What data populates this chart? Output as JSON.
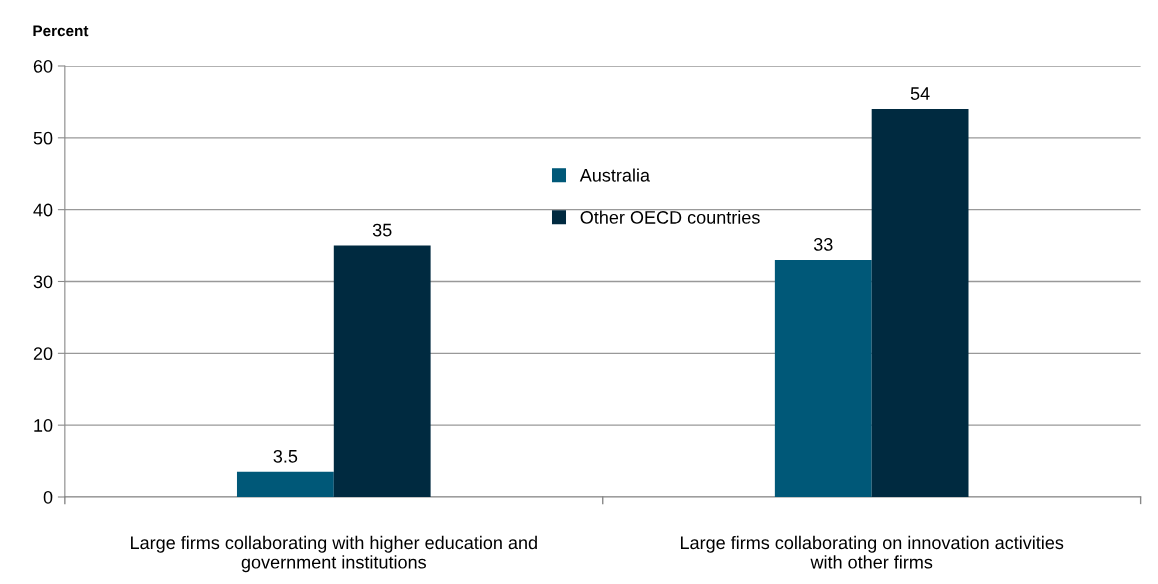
{
  "chart_data": {
    "type": "bar",
    "ylabel": "Percent",
    "categories": [
      "Large firms collaborating with higher education and\ngovernment institutions",
      "Large firms collaborating on innovation activities\nwith other firms"
    ],
    "series": [
      {
        "name": "Australia",
        "color": "#005878",
        "values": [
          3.5,
          33
        ]
      },
      {
        "name": "Other OECD countries",
        "color": "#002a40",
        "values": [
          35,
          54
        ]
      }
    ],
    "ylim": [
      0,
      60
    ],
    "yticks": [
      0,
      10,
      20,
      30,
      40,
      50,
      60
    ],
    "grid": "y",
    "legend": "top",
    "data_labels": true
  }
}
